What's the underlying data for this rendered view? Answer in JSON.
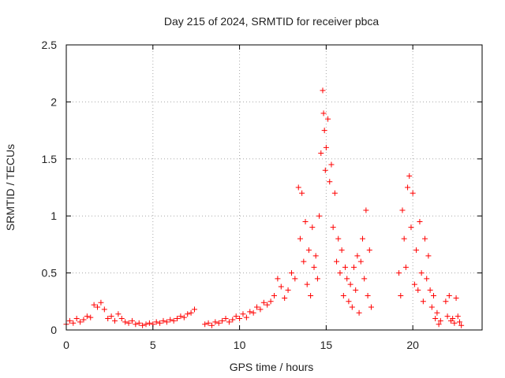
{
  "chart_data": {
    "type": "scatter",
    "title": "Day 215 of 2024, SRMTID for receiver pbca",
    "xlabel": "GPS time / hours",
    "ylabel": "SRMTID / TECUs",
    "xlim": [
      0,
      24
    ],
    "ylim": [
      0,
      2.5
    ],
    "xticks": [
      0,
      5,
      10,
      15,
      20
    ],
    "xtick_labels": [
      "0",
      "5",
      "10",
      "15",
      "20"
    ],
    "yticks": [
      0,
      0.5,
      1,
      1.5,
      2,
      2.5
    ],
    "ytick_labels": [
      "0",
      "0.5",
      "1",
      "1.5",
      "2",
      "2.5"
    ],
    "grid": true,
    "marker": "plus",
    "series": [
      {
        "name": "SRMTID",
        "color": "#ff0000",
        "x": [
          0.0,
          0.2,
          0.4,
          0.6,
          0.8,
          1.0,
          1.2,
          1.4,
          1.6,
          1.8,
          2.0,
          2.2,
          2.4,
          2.6,
          2.8,
          3.0,
          3.2,
          3.4,
          3.6,
          3.8,
          4.0,
          4.2,
          4.4,
          4.6,
          4.8,
          5.0,
          5.2,
          5.4,
          5.6,
          5.8,
          6.0,
          6.2,
          6.4,
          6.6,
          6.8,
          7.0,
          7.2,
          7.4,
          8.0,
          8.2,
          8.4,
          8.6,
          8.8,
          9.0,
          9.2,
          9.4,
          9.6,
          9.8,
          10.0,
          10.2,
          10.4,
          10.6,
          10.8,
          11.0,
          11.2,
          11.4,
          11.6,
          11.8,
          12.0,
          12.2,
          12.4,
          12.6,
          12.8,
          13.0,
          13.2,
          13.4,
          13.5,
          13.6,
          13.7,
          13.8,
          13.9,
          14.0,
          14.1,
          14.2,
          14.3,
          14.4,
          14.5,
          14.6,
          14.7,
          14.8,
          14.85,
          14.9,
          14.95,
          15.0,
          15.1,
          15.2,
          15.3,
          15.4,
          15.5,
          15.6,
          15.7,
          15.8,
          15.9,
          16.0,
          16.1,
          16.2,
          16.3,
          16.4,
          16.5,
          16.6,
          16.7,
          16.8,
          16.9,
          17.0,
          17.1,
          17.2,
          17.3,
          17.4,
          17.5,
          17.6,
          19.2,
          19.3,
          19.4,
          19.5,
          19.6,
          19.7,
          19.8,
          19.9,
          20.0,
          20.1,
          20.2,
          20.3,
          20.4,
          20.5,
          20.6,
          20.7,
          20.8,
          20.9,
          21.0,
          21.1,
          21.2,
          21.3,
          21.4,
          21.5,
          21.6,
          21.9,
          22.0,
          22.1,
          22.2,
          22.3,
          22.4,
          22.5,
          22.6,
          22.7,
          22.8
        ],
        "y": [
          0.05,
          0.08,
          0.06,
          0.1,
          0.07,
          0.09,
          0.12,
          0.11,
          0.22,
          0.2,
          0.24,
          0.18,
          0.1,
          0.12,
          0.08,
          0.14,
          0.1,
          0.07,
          0.06,
          0.08,
          0.05,
          0.06,
          0.04,
          0.05,
          0.06,
          0.05,
          0.07,
          0.06,
          0.08,
          0.07,
          0.09,
          0.08,
          0.1,
          0.12,
          0.11,
          0.14,
          0.15,
          0.18,
          0.05,
          0.06,
          0.04,
          0.07,
          0.06,
          0.08,
          0.1,
          0.07,
          0.09,
          0.12,
          0.1,
          0.14,
          0.11,
          0.16,
          0.15,
          0.2,
          0.18,
          0.24,
          0.22,
          0.25,
          0.3,
          0.45,
          0.38,
          0.28,
          0.35,
          0.5,
          0.45,
          1.25,
          0.8,
          1.2,
          0.6,
          0.95,
          0.4,
          0.7,
          0.3,
          0.9,
          0.55,
          0.65,
          0.45,
          1.0,
          1.55,
          2.1,
          1.9,
          1.75,
          1.4,
          1.6,
          1.85,
          1.3,
          1.45,
          0.9,
          1.2,
          0.6,
          0.8,
          0.5,
          0.7,
          0.3,
          0.55,
          0.45,
          0.25,
          0.4,
          0.2,
          0.55,
          0.35,
          0.65,
          0.15,
          0.6,
          0.8,
          0.45,
          1.05,
          0.3,
          0.7,
          0.2,
          0.5,
          0.3,
          1.05,
          0.8,
          0.55,
          1.25,
          1.35,
          0.9,
          1.2,
          0.4,
          0.7,
          0.35,
          0.95,
          0.5,
          0.25,
          0.8,
          0.45,
          0.65,
          0.35,
          0.2,
          0.3,
          0.1,
          0.15,
          0.05,
          0.08,
          0.25,
          0.12,
          0.3,
          0.08,
          0.1,
          0.06,
          0.28,
          0.12,
          0.07,
          0.04
        ]
      }
    ]
  }
}
